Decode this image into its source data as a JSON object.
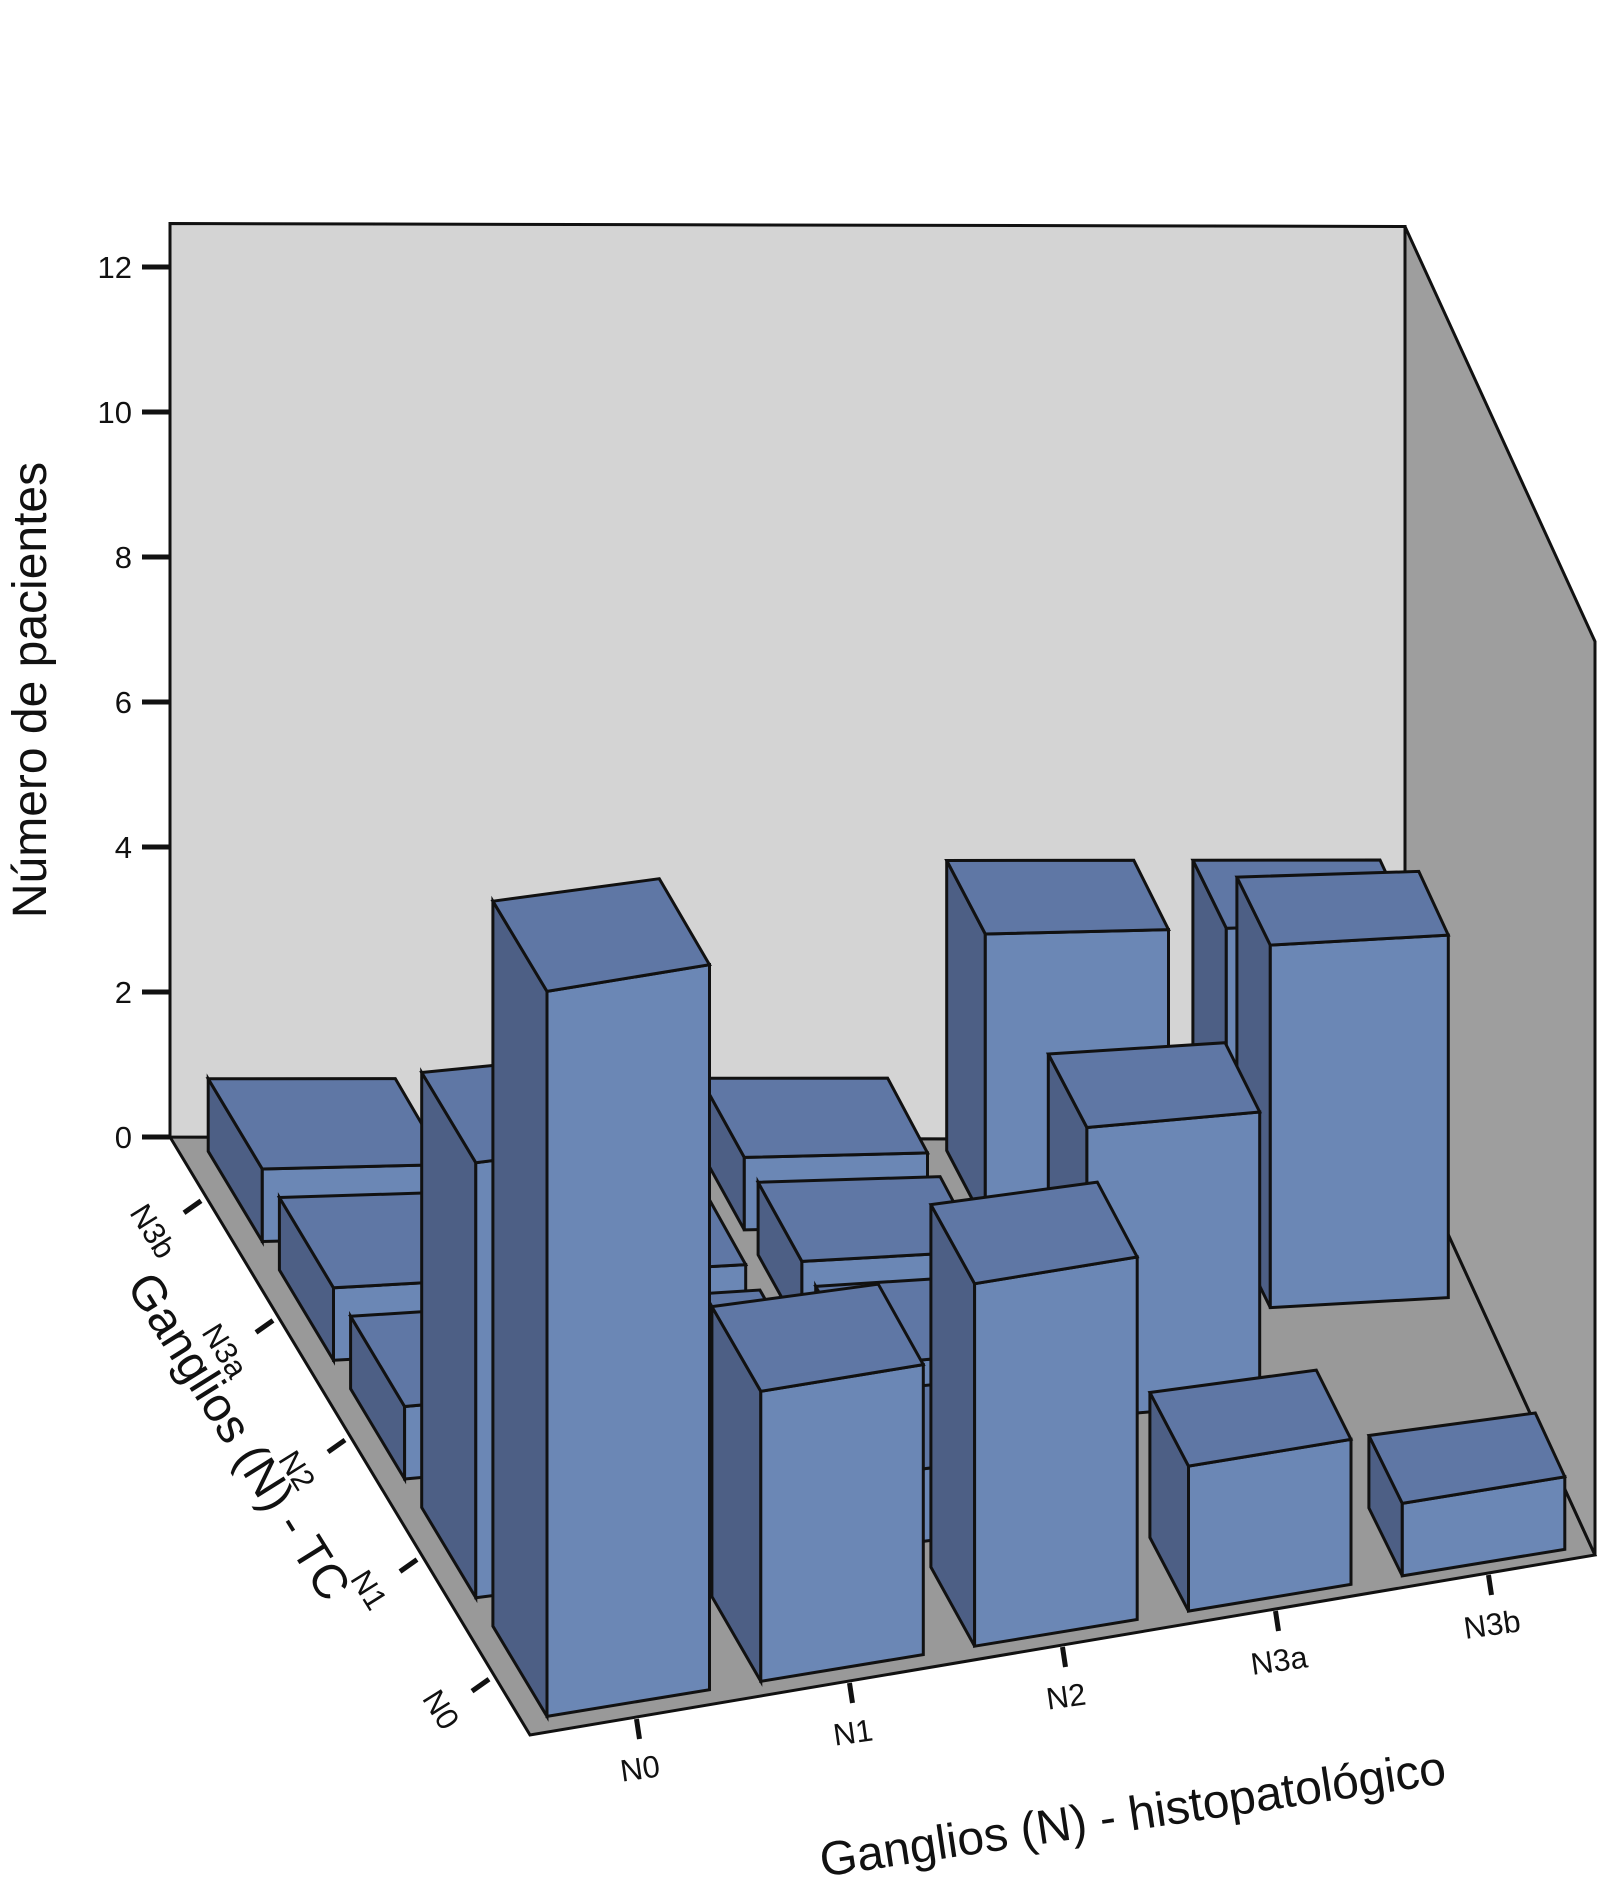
{
  "chart_data": {
    "type": "bar3d",
    "title": "",
    "zlabel": "Número de pacientes",
    "xlabel": "Ganglios (N) - histopatológico",
    "ylabel": "Ganglios (N) - TC",
    "zticks": [
      "0",
      "2",
      "4",
      "6",
      "8",
      "10",
      "12"
    ],
    "zlim": [
      0,
      12
    ],
    "x_categories": [
      "N0",
      "N1",
      "N2",
      "N3a",
      "N3b"
    ],
    "y_categories": [
      "N0",
      "N1",
      "N2",
      "N3a",
      "N3b"
    ],
    "bars": [
      {
        "x": "N0",
        "y": "N3b",
        "value": 1
      },
      {
        "x": "N1",
        "y": "N3b",
        "value": 1
      },
      {
        "x": "N2",
        "y": "N3b",
        "value": 1
      },
      {
        "x": "N3a",
        "y": "N3b",
        "value": 4
      },
      {
        "x": "N3b",
        "y": "N3b",
        "value": 4
      },
      {
        "x": "N0",
        "y": "N3a",
        "value": 1
      },
      {
        "x": "N1",
        "y": "N3a",
        "value": 1
      },
      {
        "x": "N2",
        "y": "N3a",
        "value": 1
      },
      {
        "x": "N3b",
        "y": "N3a",
        "value": 5
      },
      {
        "x": "N0",
        "y": "N2",
        "value": 1
      },
      {
        "x": "N1",
        "y": "N2",
        "value": 1
      },
      {
        "x": "N2",
        "y": "N2",
        "value": 1
      },
      {
        "x": "N3a",
        "y": "N2",
        "value": 4
      },
      {
        "x": "N0",
        "y": "N1",
        "value": 6
      },
      {
        "x": "N1",
        "y": "N1",
        "value": 1
      },
      {
        "x": "N2",
        "y": "N1",
        "value": 1
      },
      {
        "x": "N0",
        "y": "N0",
        "value": 10
      },
      {
        "x": "N1",
        "y": "N0",
        "value": 4
      },
      {
        "x": "N2",
        "y": "N0",
        "value": 5
      },
      {
        "x": "N3a",
        "y": "N0",
        "value": 2
      },
      {
        "x": "N3b",
        "y": "N0",
        "value": 1
      }
    ],
    "colors": {
      "bar_front": "#6b87b5",
      "bar_side": "#4d5f85",
      "bar_top": "#5f77a5",
      "back_wall": "#d4d4d4",
      "side_wall": "#9e9e9e",
      "floor": "#999999"
    }
  }
}
